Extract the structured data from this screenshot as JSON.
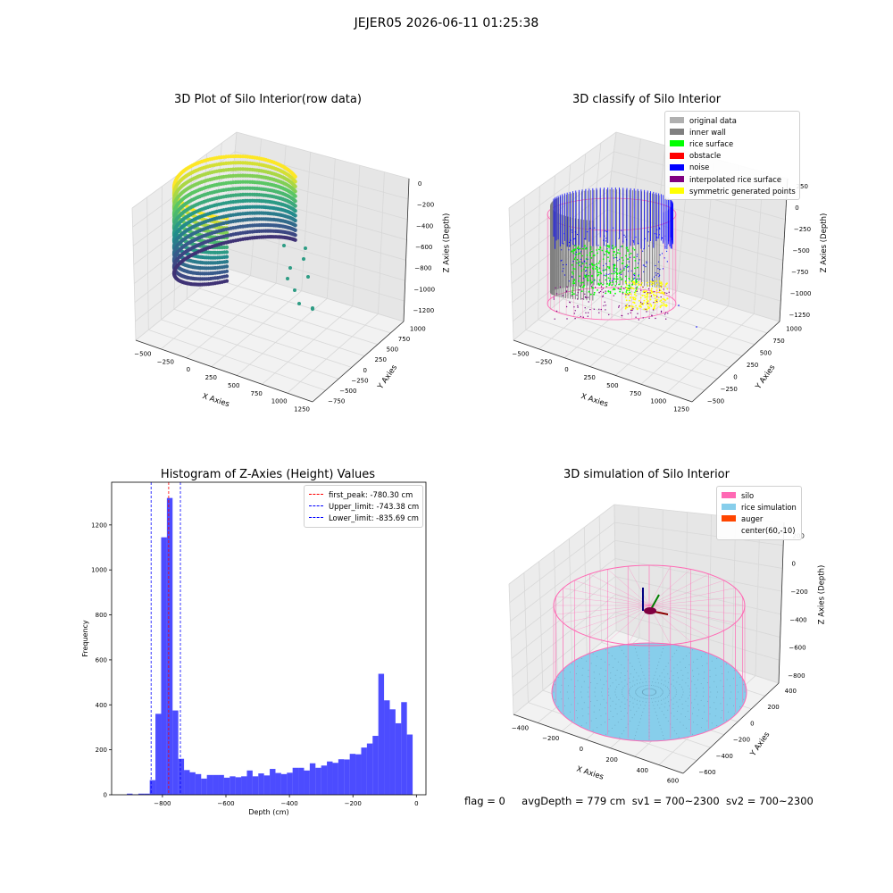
{
  "figure": {
    "title": "JEJER05 2026-06-11 01:25:38",
    "status": {
      "flag": "flag = 0",
      "avg": "avgDepth = 779 cm",
      "sv1": "sv1 = 700~2300",
      "sv2": "sv2 = 700~2300"
    }
  },
  "colors": {
    "silo_pink": "#ff69b4",
    "rice_blue": "#87ceeb",
    "auger": "#ff4500",
    "hist_bar": "#0000ff",
    "peak_line": "#ff0000",
    "limit_line": "#0000ff"
  },
  "chart_data": [
    {
      "type": "scatter",
      "title": "3D Plot of Silo Interior(row data)",
      "xlabel": "X Axies",
      "ylabel": "Y Axies",
      "zlabel": "Z Axies (Depth)",
      "x_ticks": [
        "−500",
        "−250",
        "0",
        "250",
        "500",
        "750",
        "1000",
        "1250"
      ],
      "y_ticks": [
        "−750",
        "−500",
        "−250",
        "0",
        "250",
        "500",
        "750",
        "1000"
      ],
      "z_ticks": [
        "0",
        "−200",
        "−400",
        "−600",
        "−800",
        "−1000",
        "−1200"
      ],
      "grid": true,
      "colormap": "viridis"
    },
    {
      "type": "scatter",
      "title": "3D classify of Silo Interior",
      "xlabel": "X Axies",
      "ylabel": "Y Axies",
      "zlabel": "Z Axies (Depth)",
      "x_ticks": [
        "−500",
        "−250",
        "0",
        "250",
        "500",
        "750",
        "1000",
        "1250"
      ],
      "y_ticks": [
        "−500",
        "−250",
        "0",
        "250",
        "500",
        "750",
        "1000"
      ],
      "z_ticks": [
        "250",
        "0",
        "−250",
        "−500",
        "−750",
        "−1000",
        "−1250"
      ],
      "grid": true,
      "legend_position": "top-right",
      "legend": [
        {
          "label": "original data",
          "color": "#b0b0b0"
        },
        {
          "label": "inner wall",
          "color": "#808080"
        },
        {
          "label": "rice surface",
          "color": "#00ff00"
        },
        {
          "label": "obstacle",
          "color": "#ff0000"
        },
        {
          "label": "noise",
          "color": "#0000ff"
        },
        {
          "label": "interpolated rice surface",
          "color": "#800080"
        },
        {
          "label": "symmetric generated points",
          "color": "#ffff00"
        }
      ]
    },
    {
      "type": "bar",
      "title": "Histogram of Z-Axies (Height) Values",
      "xlabel": "Depth (cm)",
      "ylabel": "Frequency",
      "xlim": [
        -960,
        30
      ],
      "ylim": [
        0,
        1390
      ],
      "x_ticks": [
        -800,
        -600,
        -400,
        -200,
        0
      ],
      "x_tick_labels": [
        "−800",
        "−600",
        "−400",
        "−200",
        "0"
      ],
      "y_ticks": [
        0,
        200,
        400,
        600,
        800,
        1000,
        1200
      ],
      "bin_width": 18,
      "bins": [
        {
          "x": -912,
          "v": 5
        },
        {
          "x": -894,
          "v": 2
        },
        {
          "x": -876,
          "v": 5
        },
        {
          "x": -858,
          "v": 5
        },
        {
          "x": -840,
          "v": 65
        },
        {
          "x": -822,
          "v": 360
        },
        {
          "x": -804,
          "v": 1145
        },
        {
          "x": -786,
          "v": 1320
        },
        {
          "x": -768,
          "v": 375
        },
        {
          "x": -750,
          "v": 160
        },
        {
          "x": -732,
          "v": 110
        },
        {
          "x": -714,
          "v": 100
        },
        {
          "x": -696,
          "v": 92
        },
        {
          "x": -678,
          "v": 72
        },
        {
          "x": -660,
          "v": 88
        },
        {
          "x": -642,
          "v": 88
        },
        {
          "x": -624,
          "v": 88
        },
        {
          "x": -606,
          "v": 76
        },
        {
          "x": -588,
          "v": 82
        },
        {
          "x": -570,
          "v": 78
        },
        {
          "x": -552,
          "v": 82
        },
        {
          "x": -534,
          "v": 108
        },
        {
          "x": -516,
          "v": 82
        },
        {
          "x": -498,
          "v": 95
        },
        {
          "x": -480,
          "v": 86
        },
        {
          "x": -462,
          "v": 115
        },
        {
          "x": -444,
          "v": 97
        },
        {
          "x": -426,
          "v": 92
        },
        {
          "x": -408,
          "v": 98
        },
        {
          "x": -390,
          "v": 120
        },
        {
          "x": -372,
          "v": 120
        },
        {
          "x": -354,
          "v": 108
        },
        {
          "x": -336,
          "v": 140
        },
        {
          "x": -318,
          "v": 120
        },
        {
          "x": -300,
          "v": 130
        },
        {
          "x": -282,
          "v": 148
        },
        {
          "x": -264,
          "v": 142
        },
        {
          "x": -246,
          "v": 158
        },
        {
          "x": -228,
          "v": 157
        },
        {
          "x": -210,
          "v": 182
        },
        {
          "x": -192,
          "v": 180
        },
        {
          "x": -174,
          "v": 210
        },
        {
          "x": -156,
          "v": 228
        },
        {
          "x": -138,
          "v": 262
        },
        {
          "x": -120,
          "v": 538
        },
        {
          "x": -102,
          "v": 420
        },
        {
          "x": -84,
          "v": 380
        },
        {
          "x": -66,
          "v": 318
        },
        {
          "x": -48,
          "v": 412
        },
        {
          "x": -30,
          "v": 268
        }
      ],
      "legend_position": "top-right",
      "lines": [
        {
          "label": "first_peak: -780.30 cm",
          "x": -780.3,
          "color": "#ff0000"
        },
        {
          "label": "Upper_limit: -743.38 cm",
          "x": -743.38,
          "color": "#0000ff"
        },
        {
          "label": "Lower_limit: -835.69 cm",
          "x": -835.69,
          "color": "#0000ff"
        }
      ]
    },
    {
      "type": "area",
      "title": "3D simulation of Silo Interior",
      "xlabel": "X Axies",
      "ylabel": "Y Axies",
      "zlabel": "Z Axies (Depth)",
      "x_ticks": [
        "−400",
        "−200",
        "0",
        "200",
        "400",
        "600"
      ],
      "y_ticks": [
        "−600",
        "−400",
        "−200",
        "0",
        "200",
        "400"
      ],
      "z_ticks": [
        "200",
        "0",
        "−200",
        "−400",
        "−600",
        "−800"
      ],
      "grid": true,
      "legend_position": "top-right",
      "legend": [
        {
          "label": "silo",
          "color": "#ff69b4"
        },
        {
          "label": "rice simulation",
          "color": "#87ceeb"
        },
        {
          "label": "auger",
          "color": "#ff4500"
        },
        {
          "label": "center(60,-10)",
          "color": ""
        }
      ]
    }
  ]
}
